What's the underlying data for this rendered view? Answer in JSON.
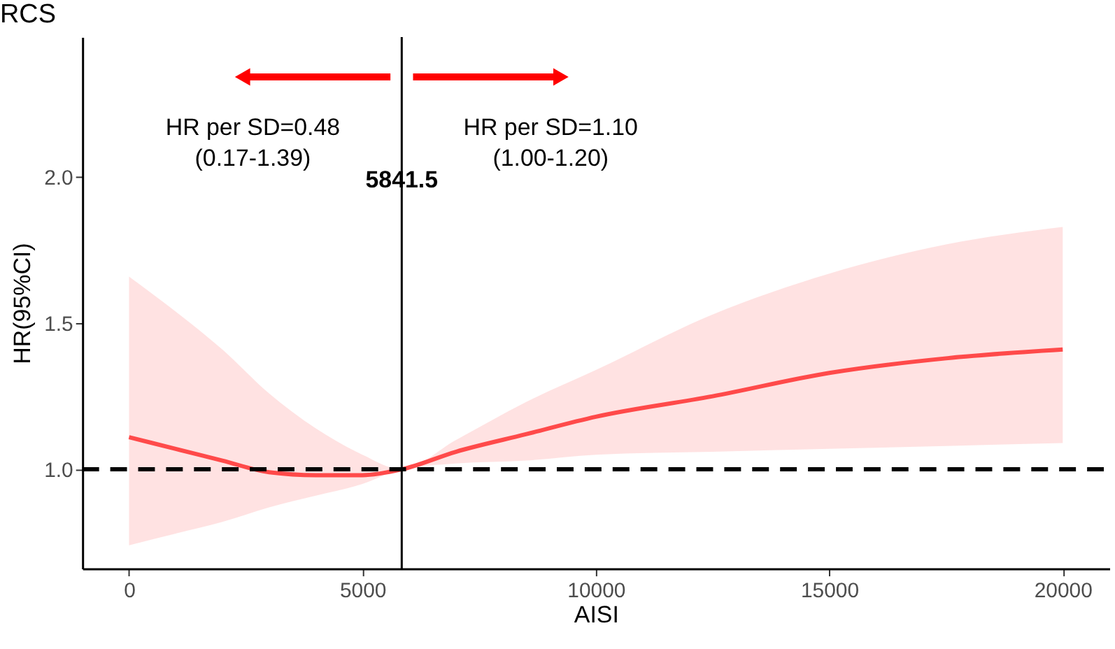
{
  "chart_data": {
    "type": "line",
    "title": "RCS",
    "xlabel": "AISI",
    "ylabel": "HR(95%CI)",
    "x": [
      0,
      1000,
      2000,
      3000,
      4000,
      5000,
      5841.5,
      7000,
      8500,
      10000,
      12500,
      15000,
      17500,
      20000
    ],
    "series": [
      {
        "color": "#ff4a4a",
        "values": [
          1.11,
          1.07,
          1.03,
          0.99,
          0.98,
          0.98,
          1.0,
          1.06,
          1.12,
          1.18,
          1.25,
          1.33,
          1.38,
          1.41
        ],
        "upper": [
          1.66,
          1.54,
          1.41,
          1.26,
          1.14,
          1.05,
          1.0,
          1.1,
          1.23,
          1.34,
          1.53,
          1.67,
          1.77,
          1.83
        ],
        "lower": [
          0.74,
          0.78,
          0.82,
          0.87,
          0.91,
          0.95,
          1.0,
          1.02,
          1.03,
          1.05,
          1.06,
          1.07,
          1.08,
          1.09
        ]
      }
    ],
    "xlim": [
      -1000,
      21000
    ],
    "xticks": [
      0,
      5000,
      10000,
      15000,
      20000
    ],
    "ylim": [
      0.66,
      2.48
    ],
    "yticks": [
      {
        "value": 1.0,
        "label": "1.0"
      },
      {
        "value": 1.5,
        "label": "1.5"
      },
      {
        "value": 2.0,
        "label": "2.0"
      }
    ],
    "grid": false,
    "marker": "none",
    "line_style": "solid",
    "ref_lines": [
      {
        "axis": "y",
        "value": 1.0,
        "color": "#000000",
        "line_style": "dashed"
      },
      {
        "axis": "x",
        "value": 5841.5,
        "label": "5841.5",
        "color": "#000000",
        "line_style": "solid"
      }
    ],
    "annotations": [
      "HR per SD=0.48\n(0.17-1.39)",
      "HR per SD=1.10\n(1.00-1.20)"
    ]
  }
}
